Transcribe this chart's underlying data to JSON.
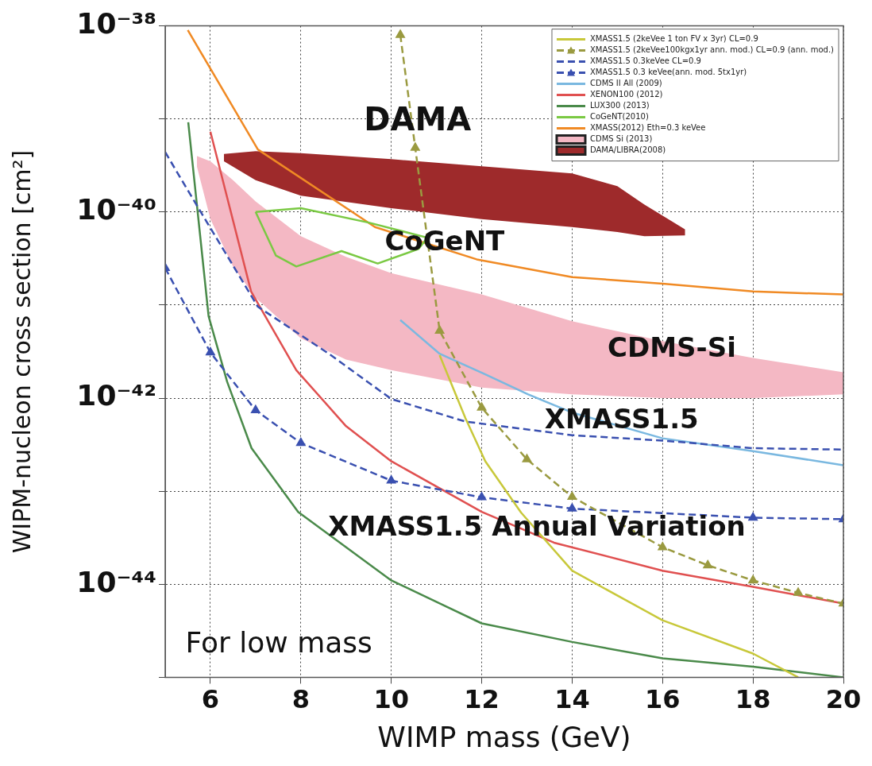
{
  "chart_data": {
    "type": "line",
    "xlabel": "WIMP mass (GeV)",
    "ylabel": "WIPM-nucleon cross section [cm²]",
    "log": "y",
    "xlim": [
      5,
      20
    ],
    "xticks": [
      6,
      8,
      10,
      12,
      14,
      16,
      18,
      20
    ],
    "ylim": [
      1e-45,
      1e-38
    ],
    "yticks": [
      {
        "value": 1e-38,
        "label": "10⁻³⁸"
      },
      {
        "value": 1e-39,
        "label": null
      },
      {
        "value": 1e-40,
        "label": "10⁻⁴⁰"
      },
      {
        "value": 1e-41,
        "label": null
      },
      {
        "value": 1e-42,
        "label": "10⁻⁴²"
      },
      {
        "value": 1e-43,
        "label": null
      },
      {
        "value": 1e-44,
        "label": "10⁻⁴⁴"
      },
      {
        "value": 1e-45,
        "label": null
      }
    ],
    "grid": true,
    "legend": "top right",
    "series": [
      {
        "name": "XMASS1.5 (2keVee 1 ton FV x 3yr) CL=0.9",
        "color": "#c8c83a",
        "x": [
          11.07,
          11.64,
          12.08,
          12.87,
          14,
          16,
          18,
          19
        ],
        "values": [
          2.9e-42,
          6.1e-43,
          2.1e-43,
          5.9e-44,
          1.4e-44,
          4.1e-45,
          1.8e-45,
          1e-45
        ]
      },
      {
        "name": "XMASS1.5 (2keVee100kgx1yr ann. mod.) CL=0.9 (ann. mod.)",
        "color": "#9a9a40",
        "line_style": "dashed",
        "marker": "triangle",
        "x": [
          10.2,
          10.53,
          11.07,
          12,
          13,
          14,
          16,
          17,
          18,
          19,
          20
        ],
        "values": [
          8e-39,
          4.9e-40,
          5.3e-42,
          7.9e-43,
          2.2e-43,
          8.7e-44,
          2.5e-44,
          1.6e-44,
          1.1e-44,
          8.1e-45,
          6.2e-45
        ]
      },
      {
        "name": "XMASS1.5 0.3keVee CL=0.9",
        "color": "#3a50b0",
        "line_style": "dashed",
        "x": [
          5,
          5.82,
          7.05,
          8.62,
          10,
          11.64,
          14,
          16,
          18,
          20
        ],
        "values": [
          4.4e-40,
          9.4e-41,
          9.6e-42,
          3e-42,
          9.8e-43,
          5.6e-43,
          4e-43,
          3.5e-43,
          2.9e-43,
          2.8e-43
        ]
      },
      {
        "name": "XMASS1.5 0.3 keVee(ann. mod. 5tx1yr)",
        "color": "#3a50b0",
        "line_style": "dashed",
        "marker": "triangle",
        "x": [
          5,
          6,
          7,
          8,
          10,
          12,
          14,
          18,
          20
        ],
        "values": [
          2.5e-41,
          3.1e-42,
          7.4e-43,
          3.3e-43,
          1.3e-43,
          8.6e-44,
          6.5e-44,
          5.2e-44,
          5e-44
        ]
      },
      {
        "name": "CDMS II All (2009)",
        "color": "#7ab8e0",
        "x": [
          10.2,
          11.07,
          12.08,
          13.02,
          14,
          16,
          18,
          20
        ],
        "values": [
          6.9e-42,
          3e-42,
          1.8e-42,
          1.1e-42,
          7e-43,
          3.7e-43,
          2.7e-43,
          1.9e-43
        ]
      },
      {
        "name": "XENON100 (2012)",
        "color": "#e05050",
        "x": [
          6.0,
          6.9,
          7.9,
          9.0,
          10,
          12,
          13.6,
          16,
          18,
          20
        ],
        "values": [
          7.3e-40,
          1.4e-41,
          2e-42,
          5e-43,
          2.1e-43,
          6e-44,
          2.8e-44,
          1.4e-44,
          9.4e-45,
          6.2e-45
        ]
      },
      {
        "name": "LUX300 (2013)",
        "color": "#4a8a4a",
        "x": [
          5.51,
          5.96,
          6.37,
          6.91,
          7.94,
          10,
          12,
          14,
          16,
          18,
          20
        ],
        "values": [
          9.2e-40,
          7.6e-42,
          1.5e-42,
          2.9e-43,
          6e-44,
          1.1e-44,
          3.8e-45,
          2.4e-45,
          1.6e-45,
          1.3e-45,
          1e-45
        ]
      },
      {
        "name": "CoGeNT(2010)",
        "color": "#7ac943",
        "x": [
          7.0,
          8.0,
          9.5,
          10.8
        ],
        "values": [
          1e-40,
          1.1e-40,
          7.7e-41,
          5.3e-41
        ]
      },
      {
        "color": "#7ac943",
        "x": [
          7.0,
          7.45,
          7.9,
          8.9,
          9.7,
          10.6,
          10.8
        ],
        "values": [
          1e-40,
          3.4e-41,
          2.6e-41,
          3.8e-41,
          2.8e-41,
          4e-41,
          5.3e-41
        ]
      },
      {
        "name": "XMASS(2012) Eth=0.3 keVee",
        "color": "#f08a24",
        "x": [
          5.5,
          7.05,
          9.64,
          11.89,
          14,
          16,
          18,
          20
        ],
        "values": [
          9e-39,
          4.7e-40,
          6.9e-41,
          3.1e-41,
          2e-41,
          1.7e-41,
          1.4e-41,
          1.3e-41
        ]
      },
      {
        "name": "CDMS Si (2013)",
        "color": "#f4b8c4",
        "x": [
          5.7,
          6,
          6.5,
          7,
          8,
          9,
          10,
          12,
          14,
          16,
          18,
          20
        ],
        "values": [
          null,
          null,
          null,
          null,
          null,
          null,
          null,
          null,
          null,
          null,
          null,
          null
        ],
        "upper": [
          4e-40,
          3.5e-40,
          2.2e-40,
          1.3e-40,
          5.5e-41,
          3.3e-41,
          2.2e-41,
          1.3e-41,
          6.7e-42,
          4.1e-42,
          2.7e-42,
          1.9e-42
        ],
        "lower": [
          3.1e-40,
          8.4e-41,
          2.6e-41,
          1.2e-41,
          4.4e-42,
          2.6e-42,
          2e-42,
          1.3e-42,
          1.1e-42,
          1e-42,
          1e-42,
          1.1e-42
        ]
      },
      {
        "name": "DAMA/LIBRA(2008)",
        "color": "#9e2a2b",
        "x": [
          6.3,
          7,
          8,
          10,
          12,
          14,
          15,
          15.6,
          16.5
        ],
        "values": [
          null,
          null,
          null,
          null,
          null,
          null,
          null,
          null,
          null
        ],
        "upper": [
          4.2e-40,
          4.5e-40,
          4.3e-40,
          3.7e-40,
          3.1e-40,
          2.6e-40,
          1.9e-40,
          1.2e-40,
          6.5e-41
        ],
        "lower": [
          3.5e-40,
          2.2e-40,
          1.5e-40,
          1.1e-40,
          8.4e-41,
          6.9e-41,
          6.1e-41,
          5.5e-41,
          5.6e-41
        ]
      }
    ],
    "annotations": [
      "DAMA",
      "CoGeNT",
      "CDMS-Si",
      "XMASS1.5",
      "XMASS1.5 Annual Variation",
      "For low mass"
    ]
  }
}
